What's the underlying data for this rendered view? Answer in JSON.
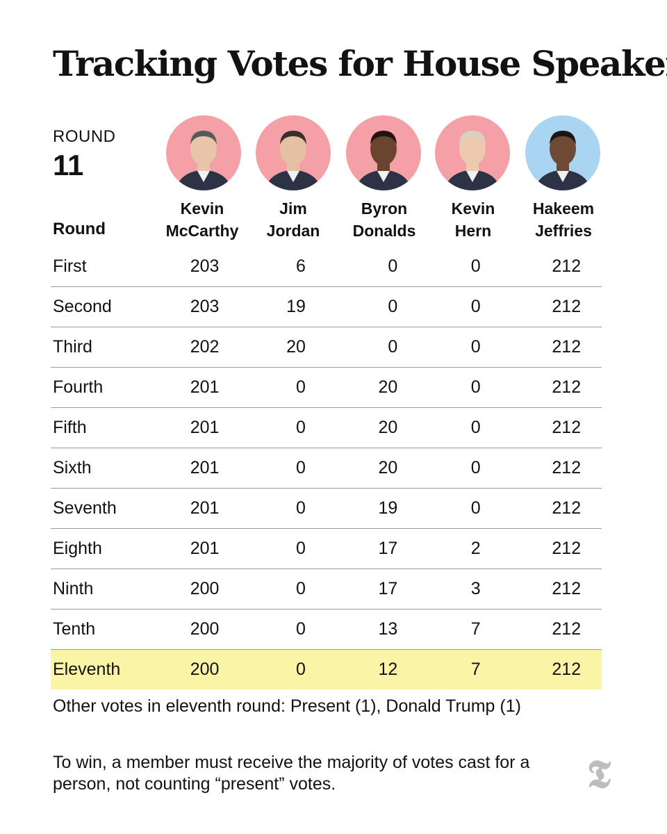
{
  "title": "Tracking Votes for House Speaker",
  "round_label": "ROUND",
  "round_number": "11",
  "row_header": "Round",
  "candidates": [
    {
      "first": "Kevin",
      "last": "McCarthy",
      "party_color": "#f4a0a6"
    },
    {
      "first": "Jim",
      "last": "Jordan",
      "party_color": "#f4a0a6"
    },
    {
      "first": "Byron",
      "last": "Donalds",
      "party_color": "#f4a0a6"
    },
    {
      "first": "Kevin",
      "last": "Hern",
      "party_color": "#f4a0a6"
    },
    {
      "first": "Hakeem",
      "last": "Jeffries",
      "party_color": "#a9d4f2"
    }
  ],
  "chart_data": {
    "type": "table",
    "columns": [
      "Kevin McCarthy",
      "Jim Jordan",
      "Byron Donalds",
      "Kevin Hern",
      "Hakeem Jeffries"
    ],
    "rows": [
      {
        "round": "First",
        "values": [
          203,
          6,
          0,
          0,
          212
        ]
      },
      {
        "round": "Second",
        "values": [
          203,
          19,
          0,
          0,
          212
        ]
      },
      {
        "round": "Third",
        "values": [
          202,
          20,
          0,
          0,
          212
        ]
      },
      {
        "round": "Fourth",
        "values": [
          201,
          0,
          20,
          0,
          212
        ]
      },
      {
        "round": "Fifth",
        "values": [
          201,
          0,
          20,
          0,
          212
        ]
      },
      {
        "round": "Sixth",
        "values": [
          201,
          0,
          20,
          0,
          212
        ]
      },
      {
        "round": "Seventh",
        "values": [
          201,
          0,
          19,
          0,
          212
        ]
      },
      {
        "round": "Eighth",
        "values": [
          201,
          0,
          17,
          2,
          212
        ]
      },
      {
        "round": "Ninth",
        "values": [
          200,
          0,
          17,
          3,
          212
        ]
      },
      {
        "round": "Tenth",
        "values": [
          200,
          0,
          13,
          7,
          212
        ]
      },
      {
        "round": "Eleventh",
        "values": [
          200,
          0,
          12,
          7,
          212
        ]
      }
    ],
    "highlight_round": "Eleventh",
    "highlight_color": "#faf4a6"
  },
  "other_votes": "Other votes in eleventh round: Present (1), Donald Trump (1)",
  "note": "To win, a member must receive the majority of votes cast for a person, not counting “present” votes.",
  "logo_icon": "nyt-logo-icon"
}
